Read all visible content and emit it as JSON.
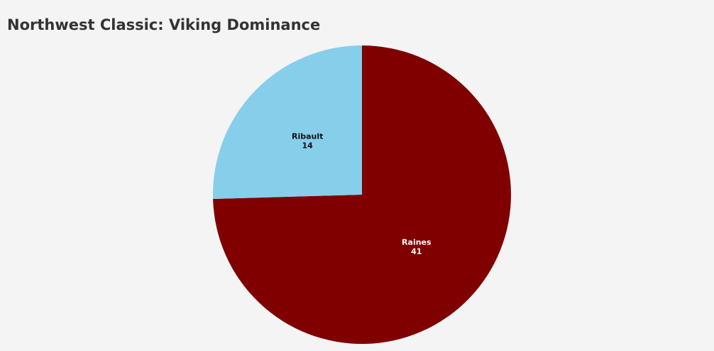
{
  "chart_data": {
    "type": "pie",
    "title": "Northwest Classic: Viking Dominance",
    "categories": [
      "Raines",
      "Ribault"
    ],
    "values": [
      41,
      14
    ],
    "colors": [
      "#800000",
      "#87ceeb"
    ]
  }
}
